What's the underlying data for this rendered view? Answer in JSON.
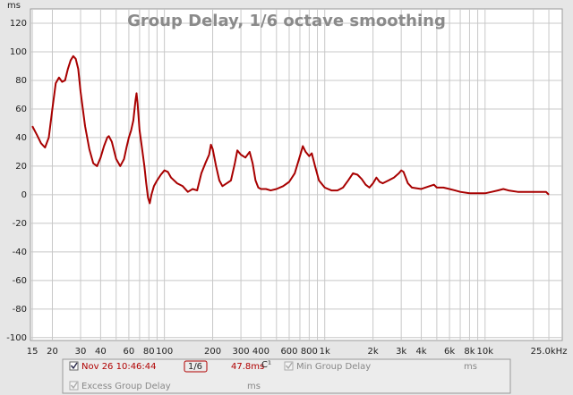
{
  "chart_data": {
    "type": "line",
    "title": "Group Delay, 1/6 octave smoothing",
    "y_label": "ms",
    "x_log": true,
    "grid": true,
    "xlim": [
      14.6,
      30300
    ],
    "ylim": [
      -102,
      130
    ],
    "yticks": [
      120,
      100,
      80,
      60,
      40,
      20,
      0,
      -20,
      -40,
      -60,
      -80,
      -100
    ],
    "xticks": [
      15,
      20,
      30,
      40,
      60,
      80,
      100,
      200,
      300,
      400,
      600,
      800,
      {
        "value": 1000,
        "label": "1k"
      },
      {
        "value": 2000,
        "label": "2k"
      },
      {
        "value": 3000,
        "label": "3k"
      },
      {
        "value": 4000,
        "label": "4k"
      },
      {
        "value": 6000,
        "label": "6k"
      },
      {
        "value": 8000,
        "label": "8k"
      },
      {
        "value": 10000,
        "label": "10k"
      },
      {
        "value": 25000,
        "label": "25.0kHz"
      }
    ],
    "xgrid_minor": [
      50,
      70,
      90,
      500,
      700,
      900,
      5000,
      7000,
      9000,
      20000
    ],
    "x": [
      15,
      16,
      17,
      18,
      19,
      20,
      21,
      22,
      23,
      24,
      25,
      26,
      27,
      28,
      29,
      30,
      32,
      34,
      36,
      38,
      40,
      42,
      44,
      45,
      47,
      50,
      53,
      56,
      58,
      60,
      62,
      64,
      66,
      67,
      68,
      70,
      72,
      75,
      77,
      79,
      81,
      83,
      86,
      90,
      95,
      100,
      105,
      110,
      120,
      130,
      140,
      150,
      160,
      170,
      180,
      190,
      195,
      200,
      210,
      220,
      230,
      245,
      260,
      275,
      285,
      300,
      320,
      340,
      355,
      370,
      385,
      400,
      430,
      460,
      500,
      550,
      600,
      650,
      700,
      730,
      760,
      800,
      830,
      870,
      920,
      1000,
      1100,
      1200,
      1300,
      1400,
      1500,
      1600,
      1700,
      1800,
      1900,
      2000,
      2100,
      2200,
      2300,
      2500,
      2700,
      2900,
      3000,
      3100,
      3300,
      3500,
      4000,
      4500,
      4800,
      5000,
      5500,
      6000,
      6500,
      7000,
      8000,
      10000,
      11000,
      12000,
      13000,
      14000,
      16000,
      20000,
      24000,
      25000
    ],
    "series": [
      {
        "name": "Nov 26 10:46:44",
        "color": "#a80000",
        "values": [
          48,
          42,
          36,
          33,
          40,
          60,
          78,
          82,
          79,
          80,
          88,
          94,
          97,
          95,
          88,
          72,
          48,
          32,
          22,
          20,
          26,
          34,
          40,
          41,
          37,
          25,
          20,
          25,
          33,
          40,
          45,
          52,
          66,
          71,
          64,
          45,
          35,
          20,
          8,
          -2,
          -6,
          0,
          6,
          10,
          14,
          17,
          16,
          12,
          8,
          6,
          2,
          4,
          3,
          15,
          22,
          28,
          35,
          32,
          20,
          10,
          6,
          8,
          10,
          22,
          31,
          28,
          26,
          30,
          22,
          10,
          5,
          4,
          4,
          3,
          4,
          6,
          9,
          15,
          27,
          34,
          30,
          27,
          29,
          20,
          10,
          5,
          3,
          3,
          5,
          10,
          15,
          14,
          11,
          7,
          5,
          8,
          12,
          9,
          8,
          10,
          12,
          15,
          17,
          16,
          8,
          5,
          4,
          6,
          7,
          5,
          5,
          4,
          3,
          2,
          1,
          1,
          2,
          3,
          4,
          3,
          2,
          2,
          2,
          0
        ]
      }
    ]
  },
  "controls": {
    "smoothing": "1/6",
    "delay": "47.8ms",
    "channel": "C¹",
    "min_group_delay": "Min Group Delay",
    "min_unit": "ms",
    "excess_group_delay": "Excess Group Delay",
    "excess_unit": "ms"
  }
}
